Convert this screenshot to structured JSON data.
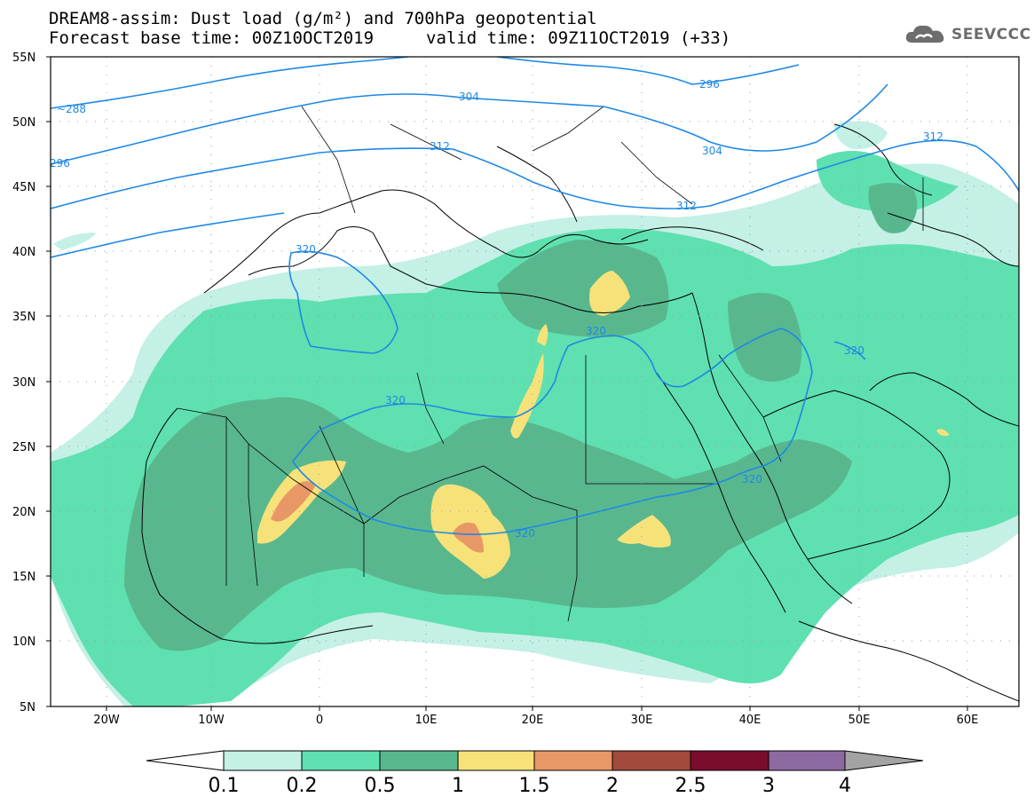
{
  "header": {
    "title_line1": "DREAM8-assim: Dust load (g/m²) and 700hPa geopotential",
    "title_line2": "Forecast base time: 00Z10OCT2019",
    "title_line3": "valid time: 09Z11OCT2019 (+33)"
  },
  "logo": {
    "text": "SEEVCCC",
    "icon": "cloud-icon"
  },
  "axes": {
    "lat_labels": [
      "55N",
      "50N",
      "45N",
      "40N",
      "35N",
      "30N",
      "25N",
      "20N",
      "15N",
      "10N",
      "5N"
    ],
    "lon_labels": [
      "20W",
      "10W",
      "0",
      "10E",
      "20E",
      "30E",
      "40E",
      "50E",
      "60E"
    ]
  },
  "contours": [
    {
      "label": "288",
      "text": "~288"
    },
    {
      "label": "296",
      "text": "296"
    },
    {
      "label": "296b",
      "text": "296"
    },
    {
      "label": "304",
      "text": "304"
    },
    {
      "label": "304b",
      "text": "304"
    },
    {
      "label": "312",
      "text": "312"
    },
    {
      "label": "312b",
      "text": "312"
    },
    {
      "label": "312c",
      "text": "312"
    },
    {
      "label": "320a",
      "text": "320"
    },
    {
      "label": "320b",
      "text": "320"
    },
    {
      "label": "320c",
      "text": "320"
    },
    {
      "label": "320d",
      "text": "320"
    },
    {
      "label": "320e",
      "text": "320"
    },
    {
      "label": "320f",
      "text": "320"
    }
  ],
  "colorbar": {
    "ticks": [
      "0.1",
      "0.2",
      "0.5",
      "1",
      "1.5",
      "2",
      "2.5",
      "3",
      "4"
    ],
    "colors": [
      "#ffffff",
      "#c4f0e6",
      "#5fe0b0",
      "#59b78e",
      "#f7e27a",
      "#e89766",
      "#a34a3c",
      "#7a0d2c",
      "#8e6aa3",
      "#a3a3a3"
    ]
  },
  "palette": {
    "c01": "#c4f0e6",
    "c02": "#5fe0b0",
    "c05": "#59b78e",
    "c10": "#f7e27a",
    "c15": "#e89766",
    "contour": "#1e88e5"
  }
}
